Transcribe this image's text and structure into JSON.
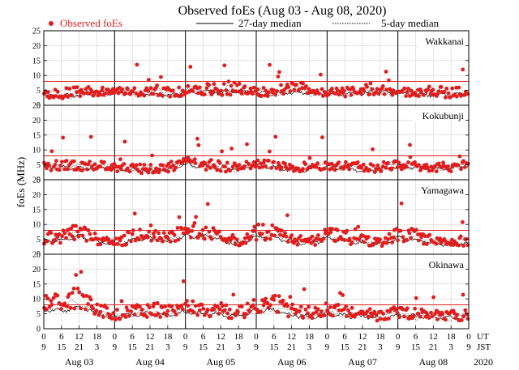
{
  "chart_data": {
    "type": "scatter",
    "title": "Observed foEs (Aug 03 - Aug 08, 2020)",
    "ylabel": "foEs (MHz)",
    "ylim": [
      0,
      25
    ],
    "yticks": [
      0,
      5,
      10,
      15,
      20,
      25
    ],
    "red_reference_line_mhz": 8,
    "legend": {
      "observed": "Observed foEs",
      "median27": "27-day median",
      "median5": "5-day median"
    },
    "x_axis": {
      "ut_label": "UT",
      "jst_label": "JST",
      "year_label": "2020",
      "days": [
        "Aug 03",
        "Aug 04",
        "Aug 05",
        "Aug 06",
        "Aug 07",
        "Aug 08"
      ],
      "ut_ticks": [
        "0",
        "6",
        "12",
        "18",
        "0",
        "6",
        "12",
        "18",
        "0",
        "6",
        "12",
        "18",
        "0",
        "6",
        "12",
        "18",
        "0",
        "6",
        "12",
        "18",
        "0",
        "6",
        "12",
        "18",
        "0"
      ],
      "jst_ticks": [
        "9",
        "15",
        "21",
        "3",
        "9",
        "15",
        "21",
        "3",
        "9",
        "15",
        "21",
        "3",
        "9",
        "15",
        "21",
        "3",
        "9",
        "15",
        "21",
        "3",
        "9",
        "15",
        "21",
        "3",
        "9"
      ]
    },
    "stations": [
      {
        "name": "Wakkanai",
        "base": [
          3.5,
          3.2,
          3.6,
          3.8,
          4.2,
          4.0,
          3.6,
          3.4,
          4.3,
          4.6,
          4.2,
          4.6,
          4.1,
          3.8,
          4.2,
          4.0,
          3.9,
          3.7,
          4.1,
          4.5,
          4.2,
          3.6,
          3.4,
          3.6,
          4.0
        ],
        "amp": [
          1.4,
          1.6,
          2.0,
          1.6,
          1.2,
          1.6,
          2.4,
          2.2,
          1.4,
          2.0,
          2.6,
          2.3,
          1.2,
          2.0,
          3.0,
          2.3,
          1.0,
          1.6,
          2.4,
          2.1,
          1.0,
          1.2,
          2.0,
          1.8,
          1.0
        ]
      },
      {
        "name": "Kokubunji",
        "base": [
          4.3,
          4.0,
          3.6,
          4.2,
          3.6,
          3.4,
          3.0,
          3.6,
          5.0,
          4.4,
          3.6,
          3.6,
          5.2,
          4.2,
          3.4,
          3.5,
          4.6,
          3.8,
          3.2,
          3.6,
          4.6,
          4.2,
          3.8,
          3.8,
          5.0
        ],
        "amp": [
          1.5,
          1.6,
          1.8,
          1.5,
          1.3,
          1.2,
          1.5,
          1.6,
          1.8,
          1.8,
          1.9,
          1.5,
          1.6,
          1.8,
          2.0,
          1.6,
          1.4,
          1.6,
          1.8,
          1.6,
          1.2,
          1.0,
          1.2,
          1.1,
          1.4
        ]
      },
      {
        "name": "Yamagawa",
        "base": [
          4.5,
          4.6,
          6.2,
          4.2,
          3.2,
          4.6,
          5.6,
          4.0,
          6.0,
          6.2,
          4.8,
          3.4,
          5.8,
          5.6,
          4.4,
          3.4,
          5.4,
          4.6,
          3.8,
          3.2,
          5.4,
          5.0,
          3.6,
          3.2,
          3.8
        ],
        "amp": [
          2.6,
          2.4,
          3.4,
          2.0,
          1.4,
          2.8,
          3.5,
          2.2,
          3.6,
          3.8,
          2.4,
          1.6,
          3.6,
          3.2,
          2.2,
          1.6,
          3.2,
          2.6,
          1.8,
          1.5,
          3.0,
          2.8,
          1.6,
          1.4,
          1.8
        ]
      },
      {
        "name": "Okinawa",
        "base": [
          6.2,
          6.0,
          7.4,
          5.2,
          4.0,
          4.6,
          5.0,
          4.4,
          5.6,
          5.0,
          4.8,
          4.2,
          6.0,
          6.2,
          4.6,
          3.8,
          5.0,
          4.4,
          4.0,
          3.6,
          4.4,
          4.0,
          3.8,
          3.6,
          4.0
        ],
        "amp": [
          4.2,
          4.6,
          5.8,
          3.2,
          2.0,
          2.8,
          3.6,
          2.6,
          3.6,
          3.4,
          3.0,
          2.4,
          4.2,
          4.6,
          2.8,
          2.0,
          3.0,
          2.8,
          2.2,
          1.8,
          2.4,
          2.2,
          1.8,
          1.6,
          2.0
        ]
      }
    ]
  }
}
